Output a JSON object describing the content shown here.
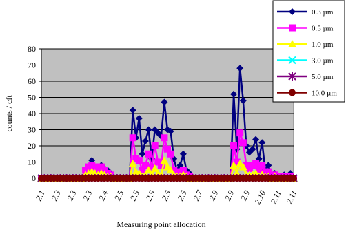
{
  "chart_data": {
    "type": "line",
    "title": "",
    "xlabel": "Measuring point allocation",
    "ylabel": "counts / cft",
    "ylim": [
      0,
      80
    ],
    "yticks": [
      0,
      10,
      20,
      30,
      40,
      50,
      60,
      70,
      80
    ],
    "grid": "horizontal",
    "plot_background": "#c0c0c0",
    "legend_position": "top-right",
    "x_tick_labels": [
      "2.1",
      "2.3",
      "2.3",
      "2.3",
      "2.4",
      "2.5",
      "2.5",
      "2.5",
      "2.5",
      "2.5",
      "2.7",
      "2.9",
      "2.9",
      "2.9",
      "2.10",
      "2.11",
      "2.11"
    ],
    "series": [
      {
        "name": "0.3 µm",
        "color": "#000080",
        "marker": "diamond",
        "values": [
          0,
          0,
          0,
          0,
          0,
          0,
          0,
          0,
          0,
          0,
          0,
          0,
          0,
          0,
          0,
          6,
          11,
          7,
          5,
          8,
          6,
          5,
          3,
          0,
          0,
          0,
          0,
          0,
          0,
          42,
          25,
          37,
          15,
          23,
          30,
          12,
          30,
          28,
          26,
          47,
          30,
          29,
          12,
          5,
          8,
          15,
          5,
          3,
          0,
          0,
          0,
          0,
          0,
          0,
          0,
          0,
          0,
          0,
          0,
          0,
          0,
          52,
          18,
          68,
          48,
          20,
          16,
          18,
          24,
          12,
          22,
          5,
          8,
          2,
          3,
          1,
          1,
          2,
          1,
          3,
          0
        ]
      },
      {
        "name": "0.5 µm",
        "color": "#ff00ff",
        "marker": "square",
        "values": [
          0,
          0,
          0,
          0,
          0,
          0,
          0,
          0,
          0,
          0,
          0,
          0,
          0,
          0,
          5,
          7,
          8,
          7,
          5,
          7,
          5,
          3,
          2,
          0,
          0,
          0,
          0,
          0,
          0,
          25,
          12,
          11,
          5,
          8,
          15,
          7,
          20,
          10,
          8,
          25,
          18,
          15,
          5,
          3,
          4,
          5,
          2,
          1,
          0,
          0,
          0,
          0,
          0,
          0,
          0,
          0,
          0,
          0,
          0,
          0,
          0,
          20,
          10,
          28,
          22,
          8,
          6,
          8,
          9,
          5,
          8,
          3,
          4,
          1,
          2,
          1,
          1,
          1,
          1,
          1,
          0
        ]
      },
      {
        "name": "1.0 µm",
        "color": "#ffff00",
        "marker": "triangle",
        "values": [
          0,
          0,
          0,
          0,
          0,
          0,
          0,
          0,
          0,
          0,
          0,
          0,
          0,
          0,
          2,
          3,
          4,
          3,
          2,
          3,
          2,
          1,
          1,
          0,
          0,
          0,
          0,
          0,
          0,
          9,
          4,
          3,
          1,
          2,
          5,
          2,
          6,
          3,
          2,
          11,
          7,
          5,
          2,
          1,
          1,
          2,
          1,
          0,
          0,
          0,
          0,
          0,
          0,
          0,
          0,
          0,
          0,
          0,
          0,
          0,
          0,
          8,
          3,
          9,
          7,
          2,
          2,
          2,
          3,
          1,
          2,
          1,
          1,
          0,
          1,
          0,
          0,
          0,
          0,
          0,
          0
        ]
      },
      {
        "name": "3.0 µm",
        "color": "#00ffff",
        "marker": "x",
        "values": [
          0,
          0,
          0,
          0,
          0,
          0,
          0,
          0,
          0,
          0,
          0,
          0,
          0,
          0,
          0,
          0,
          0,
          0,
          0,
          0,
          0,
          0,
          0,
          0,
          0,
          0,
          0,
          0,
          0,
          0,
          0,
          0,
          0,
          0,
          0,
          0,
          0,
          0,
          0,
          0,
          0,
          0,
          0,
          0,
          0,
          0,
          0,
          0,
          0,
          0,
          0,
          0,
          0,
          0,
          0,
          0,
          0,
          0,
          0,
          0,
          0,
          0,
          0,
          0,
          0,
          0,
          0,
          0,
          0,
          0,
          0,
          0,
          0,
          0,
          0,
          0,
          0,
          0,
          0,
          0,
          0
        ]
      },
      {
        "name": "5.0 µm",
        "color": "#800080",
        "marker": "star",
        "values": [
          0,
          0,
          0,
          0,
          0,
          0,
          0,
          0,
          0,
          0,
          0,
          0,
          0,
          0,
          0,
          0,
          0,
          0,
          0,
          0,
          0,
          0,
          0,
          0,
          0,
          0,
          0,
          0,
          0,
          0,
          0,
          0,
          0,
          0,
          0,
          0,
          0,
          0,
          0,
          0,
          0,
          0,
          0,
          0,
          0,
          0,
          0,
          0,
          0,
          0,
          0,
          0,
          0,
          0,
          0,
          0,
          0,
          0,
          0,
          0,
          0,
          0,
          0,
          0,
          0,
          0,
          0,
          0,
          0,
          0,
          0,
          0,
          0,
          0,
          0,
          0,
          0,
          0,
          0,
          0,
          0
        ]
      },
      {
        "name": "10.0 µm",
        "color": "#800000",
        "marker": "circle",
        "values": [
          0,
          0,
          0,
          0,
          0,
          0,
          0,
          0,
          0,
          0,
          0,
          0,
          0,
          0,
          0,
          0,
          0,
          0,
          0,
          0,
          0,
          0,
          0,
          0,
          0,
          0,
          0,
          0,
          0,
          0,
          0,
          0,
          0,
          0,
          0,
          0,
          0,
          0,
          0,
          0,
          0,
          0,
          0,
          0,
          0,
          0,
          0,
          0,
          0,
          0,
          0,
          0,
          0,
          0,
          0,
          0,
          0,
          0,
          0,
          0,
          0,
          0,
          0,
          0,
          0,
          0,
          0,
          0,
          0,
          0,
          0,
          0,
          0,
          0,
          0,
          0,
          0,
          0,
          0,
          0,
          0
        ]
      }
    ]
  }
}
